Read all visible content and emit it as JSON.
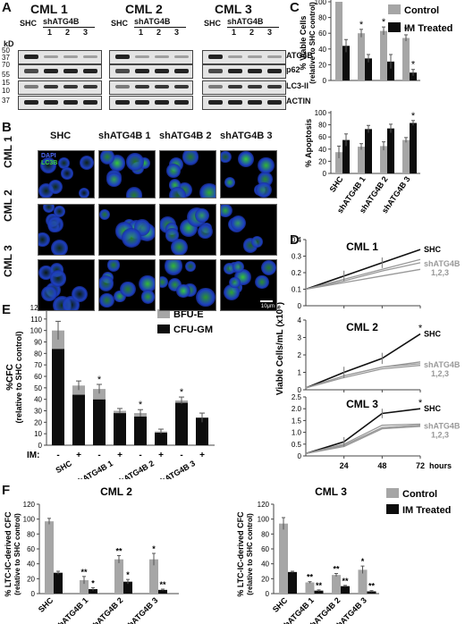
{
  "panels": {
    "A": "A",
    "B": "B",
    "C": "C",
    "D": "D",
    "E": "E",
    "F": "F"
  },
  "panelA": {
    "titles": [
      "CML 1",
      "CML 2",
      "CML 3"
    ],
    "kd_label": "kD",
    "kd_ticks": [
      "50",
      "37",
      "70",
      "55",
      "15",
      "10",
      "37"
    ],
    "lane_headers": {
      "shc": "SHC",
      "sh": "shATG4B",
      "lanes": [
        "1",
        "2",
        "3"
      ]
    },
    "proteins": [
      "ATG4B",
      "p62",
      "LC3-II",
      "ACTIN"
    ]
  },
  "panelB": {
    "col_labels": [
      "SHC",
      "shATG4B 1",
      "shATG4B 2",
      "shATG4B 3"
    ],
    "row_labels": [
      "CML 1",
      "CML 2",
      "CML 3"
    ],
    "stain_labels": [
      "DAPI",
      "LC3B"
    ],
    "scale_bar": "10μm"
  },
  "panelC": {
    "legend": [
      "Control",
      "IM Treated"
    ],
    "top_ylabel": [
      "% Viable Cells",
      "(relative to SHC control)"
    ],
    "bottom_ylabel": "% Apoptosis",
    "top_ticks": [
      "0",
      "20",
      "40",
      "60",
      "80",
      "100"
    ],
    "bottom_ticks": [
      "0",
      "20",
      "40",
      "60",
      "80",
      "100"
    ],
    "star": "*"
  },
  "panelD": {
    "titles": [
      "CML 1",
      "CML 2",
      "CML 3"
    ],
    "ylabel": "Viable Cells/mL (x10⁶)",
    "xticks": [
      "24",
      "48",
      "72"
    ],
    "xunit": "hours",
    "series_labels": {
      "shc": "SHC",
      "sh": "shATG4B",
      "sh_sub": "1,2,3"
    },
    "ticks": {
      "cml1": [
        "0",
        "0.1",
        "0.2",
        "0.3",
        "0.4"
      ],
      "cml2": [
        "0",
        "1",
        "2",
        "3",
        "4"
      ],
      "cml3": [
        "0",
        "0.5",
        "1.0",
        "1.5",
        "2.0",
        "2.5"
      ]
    },
    "star": "*"
  },
  "panelE": {
    "legend": [
      "BFU-E",
      "CFU-GM"
    ],
    "ylabel": [
      "%CFC",
      "(relative to SHC control)"
    ],
    "ticks": [
      "0",
      "10",
      "20",
      "30",
      "40",
      "50",
      "60",
      "70",
      "80",
      "90",
      "100",
      "110",
      "120"
    ],
    "im_label": "IM:",
    "im_signs": [
      "-",
      "+",
      "-",
      "+",
      "-",
      "+",
      "-",
      "+"
    ],
    "groups": [
      "SHC",
      "shATG4B 1",
      "shATG4B 2",
      "shATG4B 3"
    ],
    "star": "*"
  },
  "panelF": {
    "titles": [
      "CML 2",
      "CML 3"
    ],
    "ylabel": [
      "% LTC-IC-derived CFC",
      "(relative to SHC control)"
    ],
    "ticks": [
      "0",
      "20",
      "40",
      "60",
      "80",
      "100",
      "120"
    ],
    "groups": [
      "SHC",
      "shATG4B 1",
      "shATG4B 2",
      "shATG4B 3"
    ],
    "legend": [
      "Control",
      "IM Treated"
    ]
  },
  "colors": {
    "control": "#a6a6a6",
    "im": "#0d0d0d",
    "bfu": "#a6a6a6",
    "cfu": "#0d0d0d",
    "shc_line": "#111111",
    "sh_line": "#999999"
  },
  "chart_data": [
    {
      "type": "bar",
      "panel": "C-top",
      "categories": [
        "SHC",
        "shATG4B 1",
        "shATG4B 2",
        "shATG4B 3"
      ],
      "series": [
        {
          "name": "Control",
          "values": [
            100,
            60,
            63,
            54
          ],
          "err": [
            0,
            5,
            5,
            4
          ]
        },
        {
          "name": "IM Treated",
          "values": [
            44,
            28,
            24,
            10
          ],
          "err": [
            8,
            5,
            9,
            4
          ]
        }
      ],
      "ylabel": "% Viable Cells (relative to SHC control)",
      "ylim": [
        0,
        100
      ],
      "significance": [
        {
          "series": 0,
          "index": 1
        },
        {
          "series": 0,
          "index": 2
        },
        {
          "series": 0,
          "index": 3
        },
        {
          "series": 1,
          "index": 3
        }
      ]
    },
    {
      "type": "bar",
      "panel": "C-bottom",
      "categories": [
        "SHC",
        "shATG4B 1",
        "shATG4B 2",
        "shATG4B 3"
      ],
      "series": [
        {
          "name": "Control",
          "values": [
            35,
            44,
            45,
            55
          ],
          "err": [
            10,
            5,
            7,
            4
          ]
        },
        {
          "name": "IM Treated",
          "values": [
            55,
            73,
            74,
            83
          ],
          "err": [
            10,
            6,
            7,
            4
          ]
        }
      ],
      "ylabel": "% Apoptosis",
      "ylim": [
        0,
        100
      ],
      "significance": [
        {
          "series": 1,
          "index": 3
        }
      ]
    },
    {
      "type": "line",
      "panel": "D-CML1",
      "x": [
        0,
        24,
        48,
        72
      ],
      "series": [
        {
          "name": "SHC",
          "values": [
            0.1,
            0.18,
            0.26,
            0.34
          ]
        },
        {
          "name": "shATG4B 1",
          "values": [
            0.1,
            0.16,
            0.22,
            0.28
          ]
        },
        {
          "name": "shATG4B 2",
          "values": [
            0.1,
            0.15,
            0.21,
            0.26
          ]
        },
        {
          "name": "shATG4B 3",
          "values": [
            0.1,
            0.14,
            0.18,
            0.22
          ]
        }
      ],
      "ylim": [
        0,
        0.4
      ]
    },
    {
      "type": "line",
      "panel": "D-CML2",
      "x": [
        0,
        24,
        48,
        72
      ],
      "series": [
        {
          "name": "SHC",
          "values": [
            0.1,
            1.0,
            1.8,
            3.2
          ]
        },
        {
          "name": "shATG4B 1",
          "values": [
            0.1,
            0.8,
            1.3,
            1.6
          ]
        },
        {
          "name": "shATG4B 2",
          "values": [
            0.1,
            0.8,
            1.3,
            1.5
          ]
        },
        {
          "name": "shATG4B 3",
          "values": [
            0.1,
            0.7,
            1.2,
            1.4
          ]
        }
      ],
      "ylim": [
        0,
        4
      ],
      "significance": [
        {
          "x": 72
        }
      ]
    },
    {
      "type": "line",
      "panel": "D-CML3",
      "x": [
        0,
        24,
        48,
        72
      ],
      "series": [
        {
          "name": "SHC",
          "values": [
            0.1,
            0.6,
            1.8,
            2.0
          ]
        },
        {
          "name": "shATG4B 1",
          "values": [
            0.1,
            0.5,
            1.3,
            1.35
          ]
        },
        {
          "name": "shATG4B 2",
          "values": [
            0.1,
            0.45,
            1.2,
            1.3
          ]
        },
        {
          "name": "shATG4B 3",
          "values": [
            0.1,
            0.4,
            1.15,
            1.25
          ]
        }
      ],
      "ylim": [
        0,
        2.5
      ],
      "significance": [
        {
          "x": 72
        }
      ]
    },
    {
      "type": "bar",
      "panel": "E",
      "stacked": true,
      "categories": [
        "SHC -",
        "SHC +",
        "shATG4B 1 -",
        "shATG4B 1 +",
        "shATG4B 2 -",
        "shATG4B 2 +",
        "shATG4B 3 -",
        "shATG4B 3 +"
      ],
      "series": [
        {
          "name": "CFU-GM",
          "values": [
            84,
            44,
            40,
            28,
            25,
            11,
            37,
            24
          ]
        },
        {
          "name": "BFU-E",
          "values": [
            16,
            8,
            9,
            2,
            3,
            1,
            2,
            0
          ]
        }
      ],
      "totals_err": [
        8,
        4,
        4,
        2,
        3,
        2,
        3,
        4
      ],
      "ylabel": "%CFC (relative to SHC control)",
      "ylim": [
        0,
        120
      ],
      "significance": [
        {
          "index": 2
        },
        {
          "index": 4
        },
        {
          "index": 6
        }
      ]
    },
    {
      "type": "bar",
      "panel": "F-CML2",
      "categories": [
        "SHC",
        "shATG4B 1",
        "shATG4B 2",
        "shATG4B 3"
      ],
      "series": [
        {
          "name": "Control",
          "values": [
            97,
            18,
            46,
            46
          ],
          "err": [
            4,
            5,
            5,
            8
          ],
          "marks": [
            "",
            "**",
            "**",
            "*"
          ]
        },
        {
          "name": "IM Treated",
          "values": [
            28,
            6,
            16,
            5
          ],
          "err": [
            2,
            2,
            3,
            1
          ],
          "marks": [
            "",
            "*",
            "*",
            "**"
          ]
        }
      ],
      "ylim": [
        0,
        120
      ]
    },
    {
      "type": "bar",
      "panel": "F-CML3",
      "categories": [
        "SHC",
        "shATG4B 1",
        "shATG4B 2",
        "shATG4B 3"
      ],
      "series": [
        {
          "name": "Control",
          "values": [
            94,
            15,
            25,
            32
          ],
          "err": [
            8,
            1,
            2,
            5
          ],
          "marks": [
            "",
            "**",
            "**",
            "*"
          ]
        },
        {
          "name": "IM Treated",
          "values": [
            29,
            4,
            10,
            3
          ],
          "err": [
            1,
            1,
            1,
            1
          ],
          "marks": [
            "",
            "**",
            "**",
            "**"
          ]
        }
      ],
      "ylim": [
        0,
        120
      ]
    }
  ]
}
